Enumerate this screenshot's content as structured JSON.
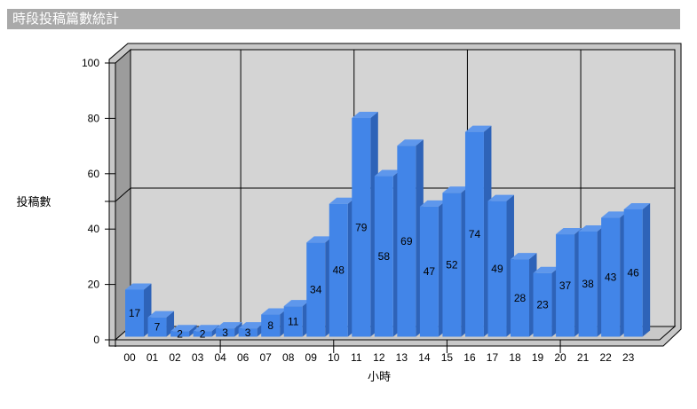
{
  "window": {
    "title": "時段投稿篇數統計"
  },
  "chart_data": {
    "type": "bar",
    "style": "3d-column",
    "title": "時段投稿篇數統計",
    "xlabel": "小時",
    "ylabel": "投稿數",
    "categories": [
      "00",
      "01",
      "02",
      "03",
      "04",
      "06",
      "07",
      "08",
      "09",
      "10",
      "11",
      "12",
      "13",
      "14",
      "15",
      "16",
      "17",
      "18",
      "19",
      "20",
      "21",
      "22",
      "23"
    ],
    "values": [
      17,
      7,
      2,
      2,
      3,
      3,
      8,
      11,
      34,
      48,
      79,
      58,
      69,
      47,
      52,
      74,
      49,
      28,
      23,
      37,
      38,
      43,
      46
    ],
    "ylim": [
      0,
      100
    ],
    "ytick_labels": [
      "0",
      "20",
      "40",
      "60",
      "80",
      "100"
    ],
    "ytick_values": [
      0,
      20,
      40,
      60,
      80,
      100
    ],
    "unlabeled_ytick_value": 50,
    "horizontal_gridline_at": 50,
    "x_gridline_tick_indices": [
      4,
      9,
      14,
      19
    ],
    "data_labels_shown": true,
    "legend": "none",
    "colors": {
      "bar_front": "#4285e8",
      "bar_top": "#5e97ec",
      "bar_side": "#2e63b8",
      "back_wall": "#d4d4d4",
      "left_wall": "#9c9c9c",
      "floor": "#c9c9c9",
      "frame": "#c8c8c8",
      "outline": "#000000",
      "title_bg": "#a9a9a9",
      "title_fg": "#ffffff"
    }
  }
}
